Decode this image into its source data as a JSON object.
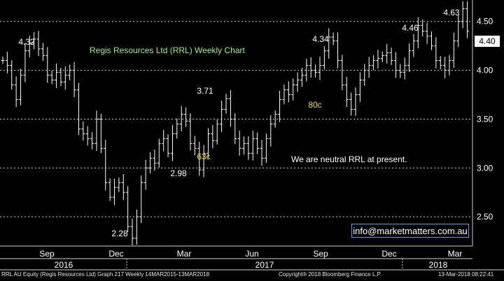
{
  "chart_data": {
    "type": "line",
    "title": "Regis Resources Ltd (RRL) Weekly Chart",
    "note": "We are neutral RRL at present.",
    "contact": "info@marketmatters.com.au",
    "current_price_label": "4.40",
    "current_price": 4.4,
    "ylim": [
      2.2,
      4.72
    ],
    "y_ticks": [
      "2.50",
      "3.00",
      "3.50",
      "4.00",
      "4.50"
    ],
    "y_tick_values": [
      2.5,
      3.0,
      3.5,
      4.0,
      4.5
    ],
    "grid": true,
    "month_ticks": [
      "Sep",
      "Dec",
      "Mar",
      "Jun",
      "Sep",
      "Dec",
      "Mar"
    ],
    "year_ticks": [
      "2016",
      "2017",
      "2018"
    ],
    "peak_trough_labels": [
      "4.32",
      "2.28",
      "2.98",
      "3.71",
      "4.34",
      "4.46",
      "4.63"
    ],
    "move_labels": [
      "63c",
      "80c"
    ],
    "series": [
      {
        "values": [
          4.1,
          4.05,
          3.85,
          3.7,
          3.95,
          4.2,
          4.28,
          4.32,
          4.22,
          4.15,
          3.95,
          3.9,
          3.98,
          3.88,
          3.95,
          4.0,
          3.8,
          3.4,
          3.35,
          3.3,
          3.25,
          3.5,
          3.2,
          2.85,
          2.7,
          2.8,
          2.85,
          2.75,
          2.4,
          2.28,
          2.5,
          2.85,
          3.0,
          3.1,
          3.05,
          3.25,
          3.3,
          3.15,
          3.35,
          3.45,
          3.55,
          3.48,
          3.25,
          3.2,
          2.98,
          3.15,
          3.35,
          3.28,
          3.45,
          3.6,
          3.71,
          3.5,
          3.3,
          3.2,
          3.25,
          3.15,
          3.3,
          3.2,
          3.1,
          3.3,
          3.45,
          3.55,
          3.7,
          3.8,
          3.75,
          3.85,
          3.9,
          3.95,
          4.05,
          4.0,
          3.98,
          4.05,
          4.2,
          4.34,
          4.3,
          4.1,
          3.85,
          3.7,
          3.6,
          3.75,
          3.9,
          4.0,
          4.05,
          4.1,
          4.12,
          4.15,
          4.18,
          4.1,
          4.0,
          3.98,
          4.05,
          4.2,
          4.3,
          4.46,
          4.4,
          4.35,
          4.25,
          4.1,
          4.05,
          4.0,
          4.1,
          4.3,
          4.5,
          4.63,
          4.4
        ]
      }
    ],
    "colors": {
      "background": "#000000",
      "bars": "#ffffff",
      "grid": "#ffffff",
      "title": "#9ef07a",
      "move_labels": "#f5e000",
      "accent": "#3fa0ff"
    }
  },
  "footer": {
    "left": "RRL AU Equity (Regis Resources Ltd) Graph 217  Weekly 14MAR2015-13MAR2018",
    "center": "Copyright® 2018 Bloomberg Finance L.P.",
    "right": "13-Mar-2018 08:22:41"
  }
}
